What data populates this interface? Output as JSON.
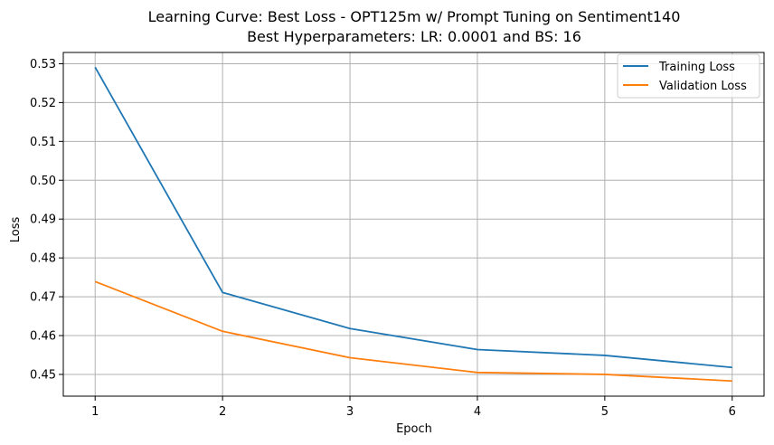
{
  "chart_data": {
    "type": "line",
    "title": "Learning Curve: Best Loss - OPT125m w/ Prompt Tuning on Sentiment140",
    "subtitle": "Best Hyperparameters: LR: 0.0001 and BS: 16",
    "xlabel": "Epoch",
    "ylabel": "Loss",
    "x": [
      1,
      2,
      3,
      4,
      5,
      6
    ],
    "xticks": [
      "1",
      "2",
      "3",
      "4",
      "5",
      "6"
    ],
    "yticks": [
      "0.45",
      "0.46",
      "0.47",
      "0.48",
      "0.49",
      "0.50",
      "0.51",
      "0.52",
      "0.53"
    ],
    "xlim": [
      0.75,
      6.25
    ],
    "ylim": [
      0.4444,
      0.5329
    ],
    "grid": true,
    "legend_position": "top-right",
    "series": [
      {
        "name": "Training Loss",
        "color": "#1f77b4",
        "values": [
          0.5291,
          0.4711,
          0.4618,
          0.4564,
          0.4549,
          0.4518
        ]
      },
      {
        "name": "Validation Loss",
        "color": "#ff7f0e",
        "values": [
          0.4739,
          0.4611,
          0.4543,
          0.4505,
          0.45,
          0.4483
        ]
      }
    ]
  }
}
